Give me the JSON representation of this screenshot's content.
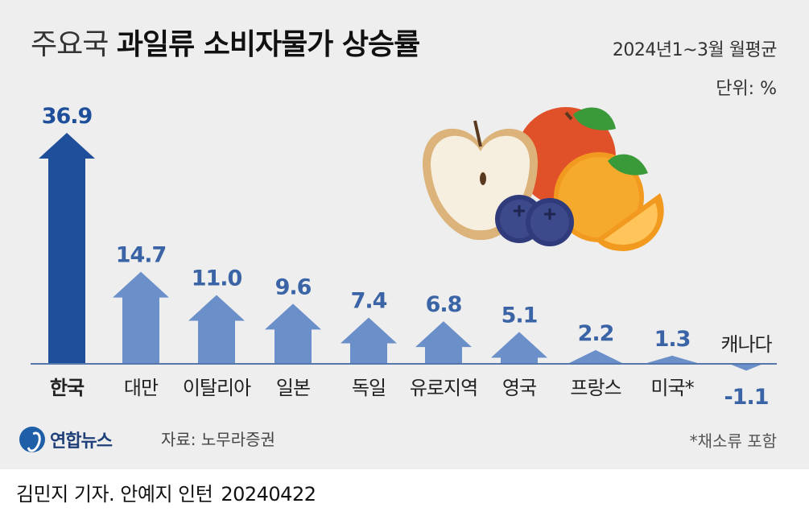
{
  "header": {
    "title_light": "주요국",
    "title_bold": "과일류 소비자물가 상승률",
    "period": "2024년1~3월 월평균",
    "unit": "단위: %"
  },
  "colors": {
    "highlight": "#1f4f9a",
    "bar": "#6b8fc9",
    "baseline": "#5577aa"
  },
  "chart_data": {
    "type": "bar",
    "categories": [
      "한국",
      "대만",
      "이탈리아",
      "일본",
      "독일",
      "유로지역",
      "영국",
      "프랑스",
      "미국*",
      "캐나다"
    ],
    "values": [
      36.9,
      14.7,
      11.0,
      9.6,
      7.4,
      6.8,
      5.1,
      2.2,
      1.3,
      -1.1
    ],
    "value_labels": [
      "36.9",
      "14.7",
      "11.0",
      "9.6",
      "7.4",
      "6.8",
      "5.1",
      "2.2",
      "1.3",
      "-1.1"
    ],
    "highlight_index": 0,
    "style": "arrow-bars"
  },
  "footer": {
    "logo": "연합뉴스",
    "source": "자료: 노무라증권",
    "footnote": "*채소류 포함",
    "credit": "김민지 기자. 안예지 인턴",
    "date": "20240422"
  },
  "illustration": {
    "icon": "fruit-illustration"
  }
}
